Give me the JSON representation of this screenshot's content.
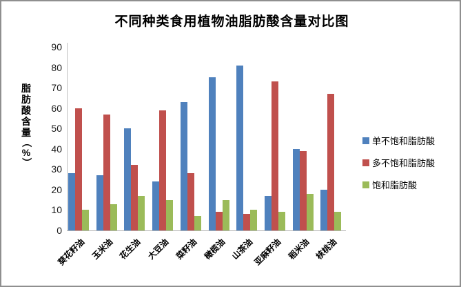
{
  "chart_data": {
    "type": "bar",
    "title": "不同种类食用植物油脂肪酸含量对比图",
    "ylabel": "脂肪酸含量（%）",
    "ylabel_chars": [
      "脂",
      "肪",
      "酸",
      "含",
      "量",
      "（",
      "%",
      "）"
    ],
    "xlabel": "",
    "ylim": [
      0,
      90
    ],
    "ytick_step": 10,
    "yticks": [
      0,
      10,
      20,
      30,
      40,
      50,
      60,
      70,
      80,
      90
    ],
    "grid": false,
    "legend_position": "right",
    "categories": [
      "葵花籽油",
      "玉米油",
      "花生油",
      "大豆油",
      "菜籽油",
      "橄榄油",
      "山茶油",
      "亚麻籽油",
      "稻米油",
      "核桃油"
    ],
    "series": [
      {
        "name": "单不饱和脂肪酸",
        "color": "#4F81BD",
        "values": [
          28,
          27,
          50,
          24,
          63,
          75,
          81,
          17,
          40,
          20
        ]
      },
      {
        "name": "多不饱和脂肪酸",
        "color": "#C0504D",
        "values": [
          60,
          57,
          32,
          59,
          28,
          9,
          8,
          73,
          39,
          67
        ]
      },
      {
        "name": "饱和脂肪酸",
        "color": "#9BBB59",
        "values": [
          10,
          13,
          17,
          15,
          7,
          15,
          10,
          9,
          18,
          9
        ]
      }
    ],
    "colors": {
      "axis_line": "#bfbfbf",
      "text": "#000000",
      "background": "#ffffff",
      "border": "#8f8f8f"
    }
  }
}
